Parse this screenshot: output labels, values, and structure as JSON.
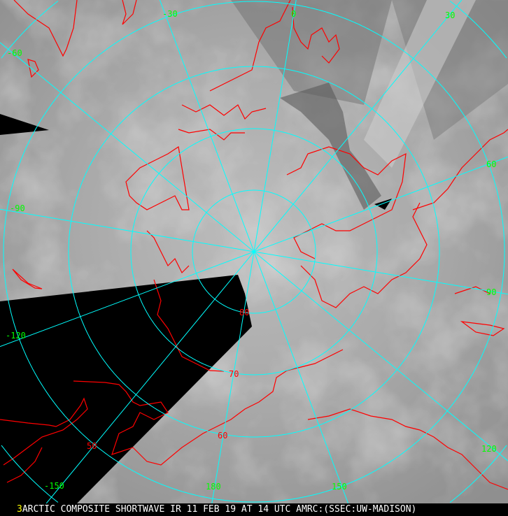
{
  "caption": {
    "frame_number": "3",
    "text": "ARCTIC COMPOSITE SHORTWAVE IR 11 FEB 19 AT 14 UTC AMRC:(SSEC:UW-MADISON)"
  },
  "longitude_labels": [
    "-30",
    "0",
    "30",
    "-60",
    "60",
    "-90",
    "90",
    "-120",
    "120",
    "-150",
    "150",
    "180"
  ],
  "latitude_labels": [
    "80",
    "70",
    "60",
    "50"
  ],
  "colors": {
    "graticule": "#00ffff",
    "coastline": "#ff0000",
    "longitude_label": "#00ff00",
    "latitude_label": "#ff0000",
    "no_data": "#000000",
    "frame_number": "#ffff00"
  }
}
